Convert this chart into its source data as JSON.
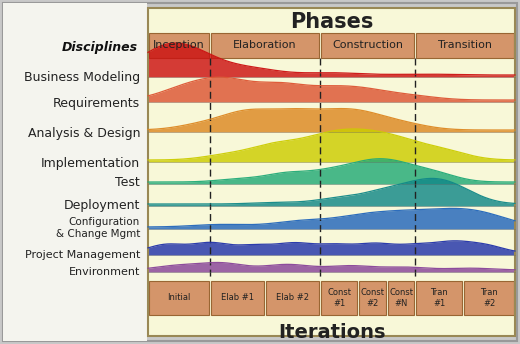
{
  "title": "Phases",
  "iterations_label": "Iterations",
  "disciplines_label": "Disciplines",
  "phases": [
    "Inception",
    "Elaboration",
    "Construction",
    "Transition"
  ],
  "iterations": [
    "Initial",
    "Elab #1",
    "Elab #2",
    "Const\n#1",
    "Const\n#2",
    "Const\n#N",
    "Tran\n#1",
    "Tran\n#2"
  ],
  "disciplines": [
    "Business Modeling",
    "Requirements",
    "Analysis & Design",
    "Implementation",
    "Test",
    "Deployment",
    "Configuration\n& Change Mgmt",
    "Project Management",
    "Environment"
  ],
  "wave_colors": [
    "#cc1111",
    "#dd5533",
    "#dd8822",
    "#cccc00",
    "#22aa77",
    "#118888",
    "#2266bb",
    "#2233aa",
    "#884499"
  ],
  "outer_bg": "#c8c8c8",
  "inner_bg": "#f8f8d8",
  "left_bg": "#f0f0e0",
  "phase_box_color": "#d4956a",
  "phase_box_edge": "#996633",
  "iter_box_color": "#d4956a",
  "iter_box_edge": "#996633"
}
